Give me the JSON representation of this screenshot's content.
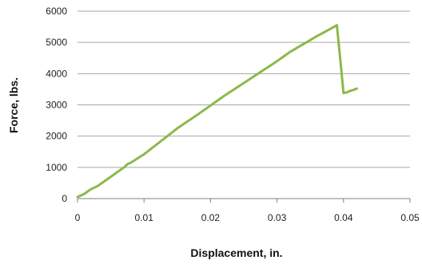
{
  "chart_data": {
    "type": "line",
    "xlabel": "Displacement, in.",
    "ylabel": "Force, lbs.",
    "xlim": [
      0,
      0.05
    ],
    "ylim": [
      0,
      6000
    ],
    "xticks": [
      "0",
      "0.01",
      "0.02",
      "0.03",
      "0.04",
      "0.05"
    ],
    "yticks": [
      "0",
      "1000",
      "2000",
      "3000",
      "4000",
      "5000",
      "6000"
    ],
    "grid": "horizontal",
    "legend": "none",
    "line_color": "#8db84a",
    "series": [
      {
        "x": [
          0,
          0.0005,
          0.001,
          0.002,
          0.003,
          0.004,
          0.005,
          0.006,
          0.007,
          0.0075,
          0.008,
          0.01,
          0.012,
          0.015,
          0.018,
          0.02,
          0.022,
          0.025,
          0.028,
          0.03,
          0.032,
          0.034,
          0.036,
          0.038,
          0.039,
          0.0395,
          0.04,
          0.0405,
          0.041,
          0.0415,
          0.042
        ],
        "y": [
          50,
          100,
          150,
          300,
          400,
          550,
          700,
          850,
          1000,
          1100,
          1150,
          1420,
          1750,
          2250,
          2680,
          2980,
          3280,
          3700,
          4120,
          4400,
          4700,
          4950,
          5200,
          5430,
          5550,
          4500,
          3380,
          3400,
          3450,
          3480,
          3520
        ]
      }
    ]
  }
}
